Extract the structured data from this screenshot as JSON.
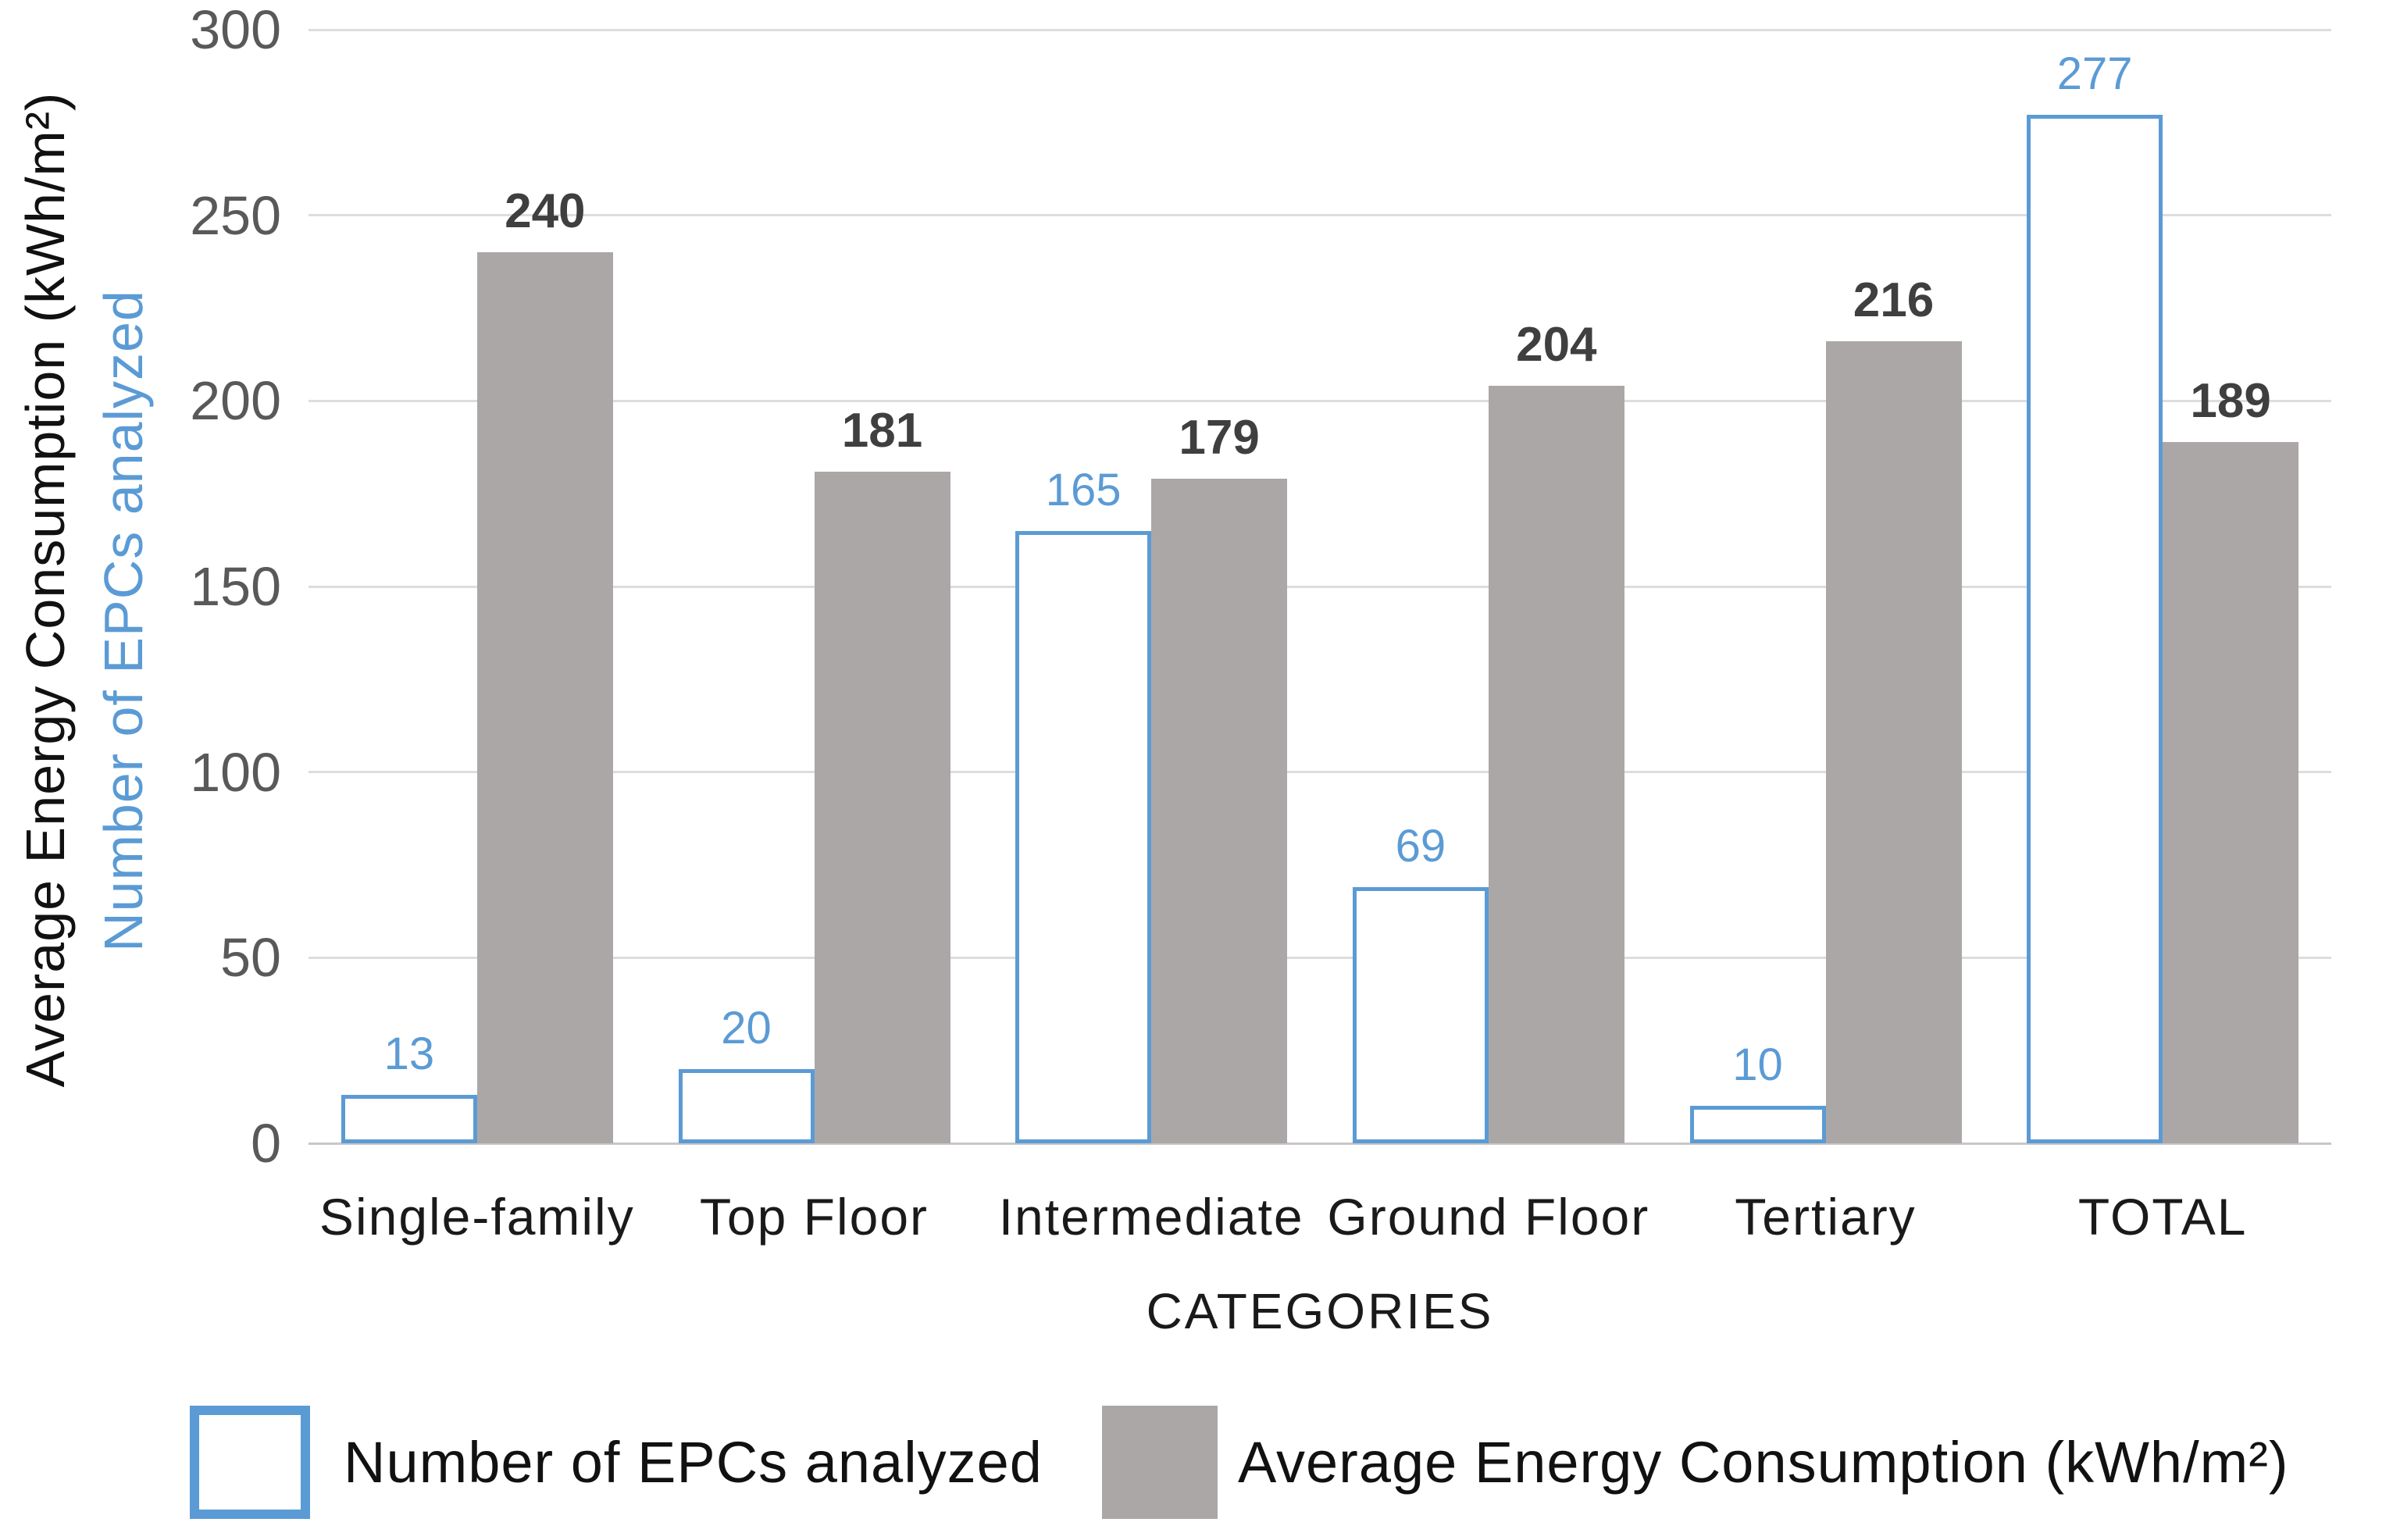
{
  "chart_data": {
    "type": "bar",
    "title": "",
    "categories": [
      "Single-family",
      "Top Floor",
      "Intermediate",
      "Ground Floor",
      "Tertiary",
      "TOTAL"
    ],
    "series": [
      {
        "name": "Number of EPCs analyzed",
        "values": [
          13,
          20,
          165,
          69,
          10,
          277
        ],
        "style": "outlined",
        "color": "#5B9BD5",
        "label_color": "#5B9BD5"
      },
      {
        "name": "Average Energy Consumption (kWh/m²)",
        "values": [
          240,
          181,
          179,
          204,
          216,
          189
        ],
        "style": "filled",
        "color": "#ABA7A7",
        "label_color": "#3F3F3F"
      }
    ],
    "xlabel": "CATEGORIES",
    "ylabels": {
      "black": "Average Energy Consumption (kWh/m²)",
      "blue": "Number of EPCs analyzed"
    },
    "ylim": [
      0,
      300
    ],
    "yticks": [
      0,
      50,
      100,
      150,
      200,
      250,
      300
    ],
    "grid": true,
    "legend_position": "bottom",
    "colors": {
      "accent_blue": "#5B9BD5",
      "bar_gray": "#ABA7A7",
      "tick_label": "#595959",
      "gridline": "#DDDDDD",
      "axis_line": "#C8C6C6",
      "data_label_dark": "#3F3F3F"
    }
  }
}
